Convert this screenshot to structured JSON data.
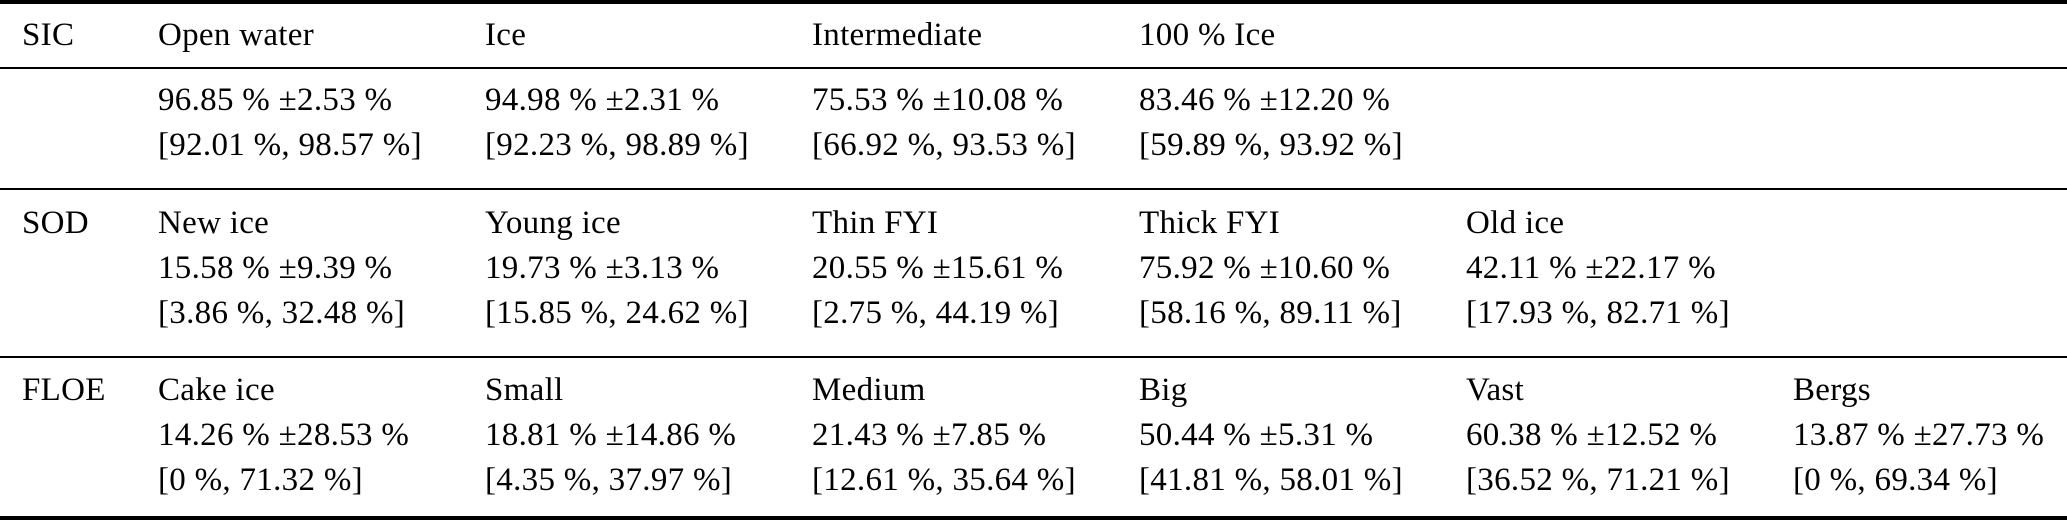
{
  "colors": {
    "background": "#ffffff",
    "text": "#000000",
    "rule": "#000000"
  },
  "table": {
    "sic": {
      "label": "SIC",
      "columns": [
        {
          "name": "Open water",
          "value": "96.85 % ±2.53 %",
          "ci": "[92.01 %, 98.57 %]"
        },
        {
          "name": "Ice",
          "value": "94.98 % ±2.31 %",
          "ci": "[92.23 %, 98.89 %]"
        },
        {
          "name": "Intermediate",
          "value": "75.53 % ±10.08 %",
          "ci": "[66.92 %, 93.53 %]"
        },
        {
          "name": "100 % Ice",
          "value": "83.46 % ±12.20 %",
          "ci": "[59.89 %, 93.92 %]"
        }
      ]
    },
    "sod": {
      "label": "SOD",
      "columns": [
        {
          "name": "New ice",
          "value": "15.58 % ±9.39 %",
          "ci": "[3.86 %, 32.48 %]"
        },
        {
          "name": "Young ice",
          "value": "19.73 % ±3.13 %",
          "ci": "[15.85 %, 24.62 %]"
        },
        {
          "name": "Thin FYI",
          "value": "20.55 % ±15.61 %",
          "ci": "[2.75 %, 44.19 %]"
        },
        {
          "name": "Thick FYI",
          "value": "75.92 % ±10.60 %",
          "ci": "[58.16 %, 89.11 %]"
        },
        {
          "name": "Old ice",
          "value": "42.11 % ±22.17 %",
          "ci": "[17.93 %, 82.71 %]"
        }
      ]
    },
    "floe": {
      "label": "FLOE",
      "columns": [
        {
          "name": "Cake ice",
          "value": "14.26 % ±28.53 %",
          "ci": "[0 %, 71.32 %]"
        },
        {
          "name": "Small",
          "value": "18.81 % ±14.86 %",
          "ci": "[4.35 %, 37.97 %]"
        },
        {
          "name": "Medium",
          "value": "21.43 % ±7.85 %",
          "ci": "[12.61 %, 35.64 %]"
        },
        {
          "name": "Big",
          "value": "50.44 % ±5.31 %",
          "ci": "[41.81 %, 58.01 %]"
        },
        {
          "name": "Vast",
          "value": "60.38 % ±12.52 %",
          "ci": "[36.52 %, 71.21 %]"
        },
        {
          "name": "Bergs",
          "value": "13.87 % ±27.73 %",
          "ci": "[0 %, 69.34 %]"
        }
      ]
    }
  }
}
